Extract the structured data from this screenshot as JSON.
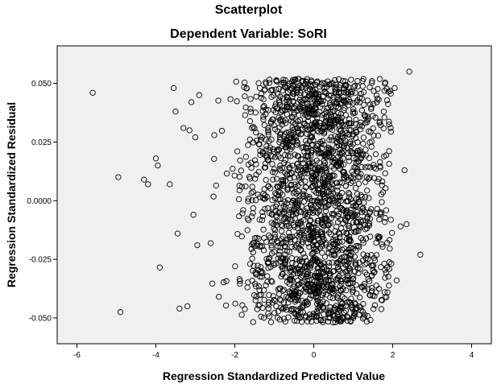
{
  "chart_data": {
    "type": "scatter",
    "title": "Scatterplot",
    "subtitle": "Dependent Variable: SoRI",
    "xlabel": "Regression Standardized Predicted Value",
    "ylabel": "Regression Standardized Residual",
    "xlim": [
      -6.5,
      4.5
    ],
    "ylim": [
      -0.061,
      0.066
    ],
    "x_ticks": [
      -6,
      -4,
      -2,
      0,
      2,
      4
    ],
    "x_tick_labels": [
      "-6",
      "-4",
      "-2",
      "0",
      "2",
      "4"
    ],
    "y_ticks": [
      0.05,
      0.025,
      0.0,
      -0.025,
      -0.05
    ],
    "y_tick_labels": [
      "0.050",
      "0.025",
      "0.0000",
      "-0.025",
      "-0.050"
    ],
    "grid": false,
    "legend": "none",
    "plot_background": "#f0f0f0",
    "marker": "open-circle",
    "marker_color": "#000000",
    "outlier_points": [
      {
        "x": -5.6,
        "y": 0.046
      },
      {
        "x": -4.95,
        "y": 0.01
      },
      {
        "x": -4.9,
        "y": -0.0475
      },
      {
        "x": -4.3,
        "y": 0.009
      },
      {
        "x": -4.2,
        "y": 0.007
      },
      {
        "x": -4.0,
        "y": 0.018
      },
      {
        "x": -3.95,
        "y": 0.015
      },
      {
        "x": -3.9,
        "y": -0.0285
      },
      {
        "x": -3.65,
        "y": 0.007
      },
      {
        "x": -3.55,
        "y": 0.048
      },
      {
        "x": -3.5,
        "y": 0.038
      },
      {
        "x": -3.45,
        "y": -0.014
      },
      {
        "x": -3.4,
        "y": -0.046
      },
      {
        "x": -3.3,
        "y": 0.031
      },
      {
        "x": -3.2,
        "y": -0.045
      },
      {
        "x": -3.15,
        "y": 0.03
      },
      {
        "x": -3.1,
        "y": 0.042
      },
      {
        "x": -3.05,
        "y": -0.006
      },
      {
        "x": -3.0,
        "y": 0.027
      },
      {
        "x": -2.95,
        "y": -0.019
      },
      {
        "x": -2.9,
        "y": 0.045
      },
      {
        "x": 2.05,
        "y": 0.048
      },
      {
        "x": 2.2,
        "y": -0.011
      },
      {
        "x": 2.3,
        "y": 0.013
      },
      {
        "x": 2.35,
        "y": -0.01
      },
      {
        "x": 2.42,
        "y": 0.055
      },
      {
        "x": 2.7,
        "y": -0.023
      },
      {
        "x": 2.1,
        "y": -0.034
      },
      {
        "x": 1.95,
        "y": 0.031
      }
    ],
    "dense_cloud": {
      "count": 2100,
      "x_range": [
        -2.9,
        2.0
      ],
      "x_center": 0.1,
      "y_range": [
        -0.052,
        0.052
      ],
      "seed": 17
    }
  }
}
